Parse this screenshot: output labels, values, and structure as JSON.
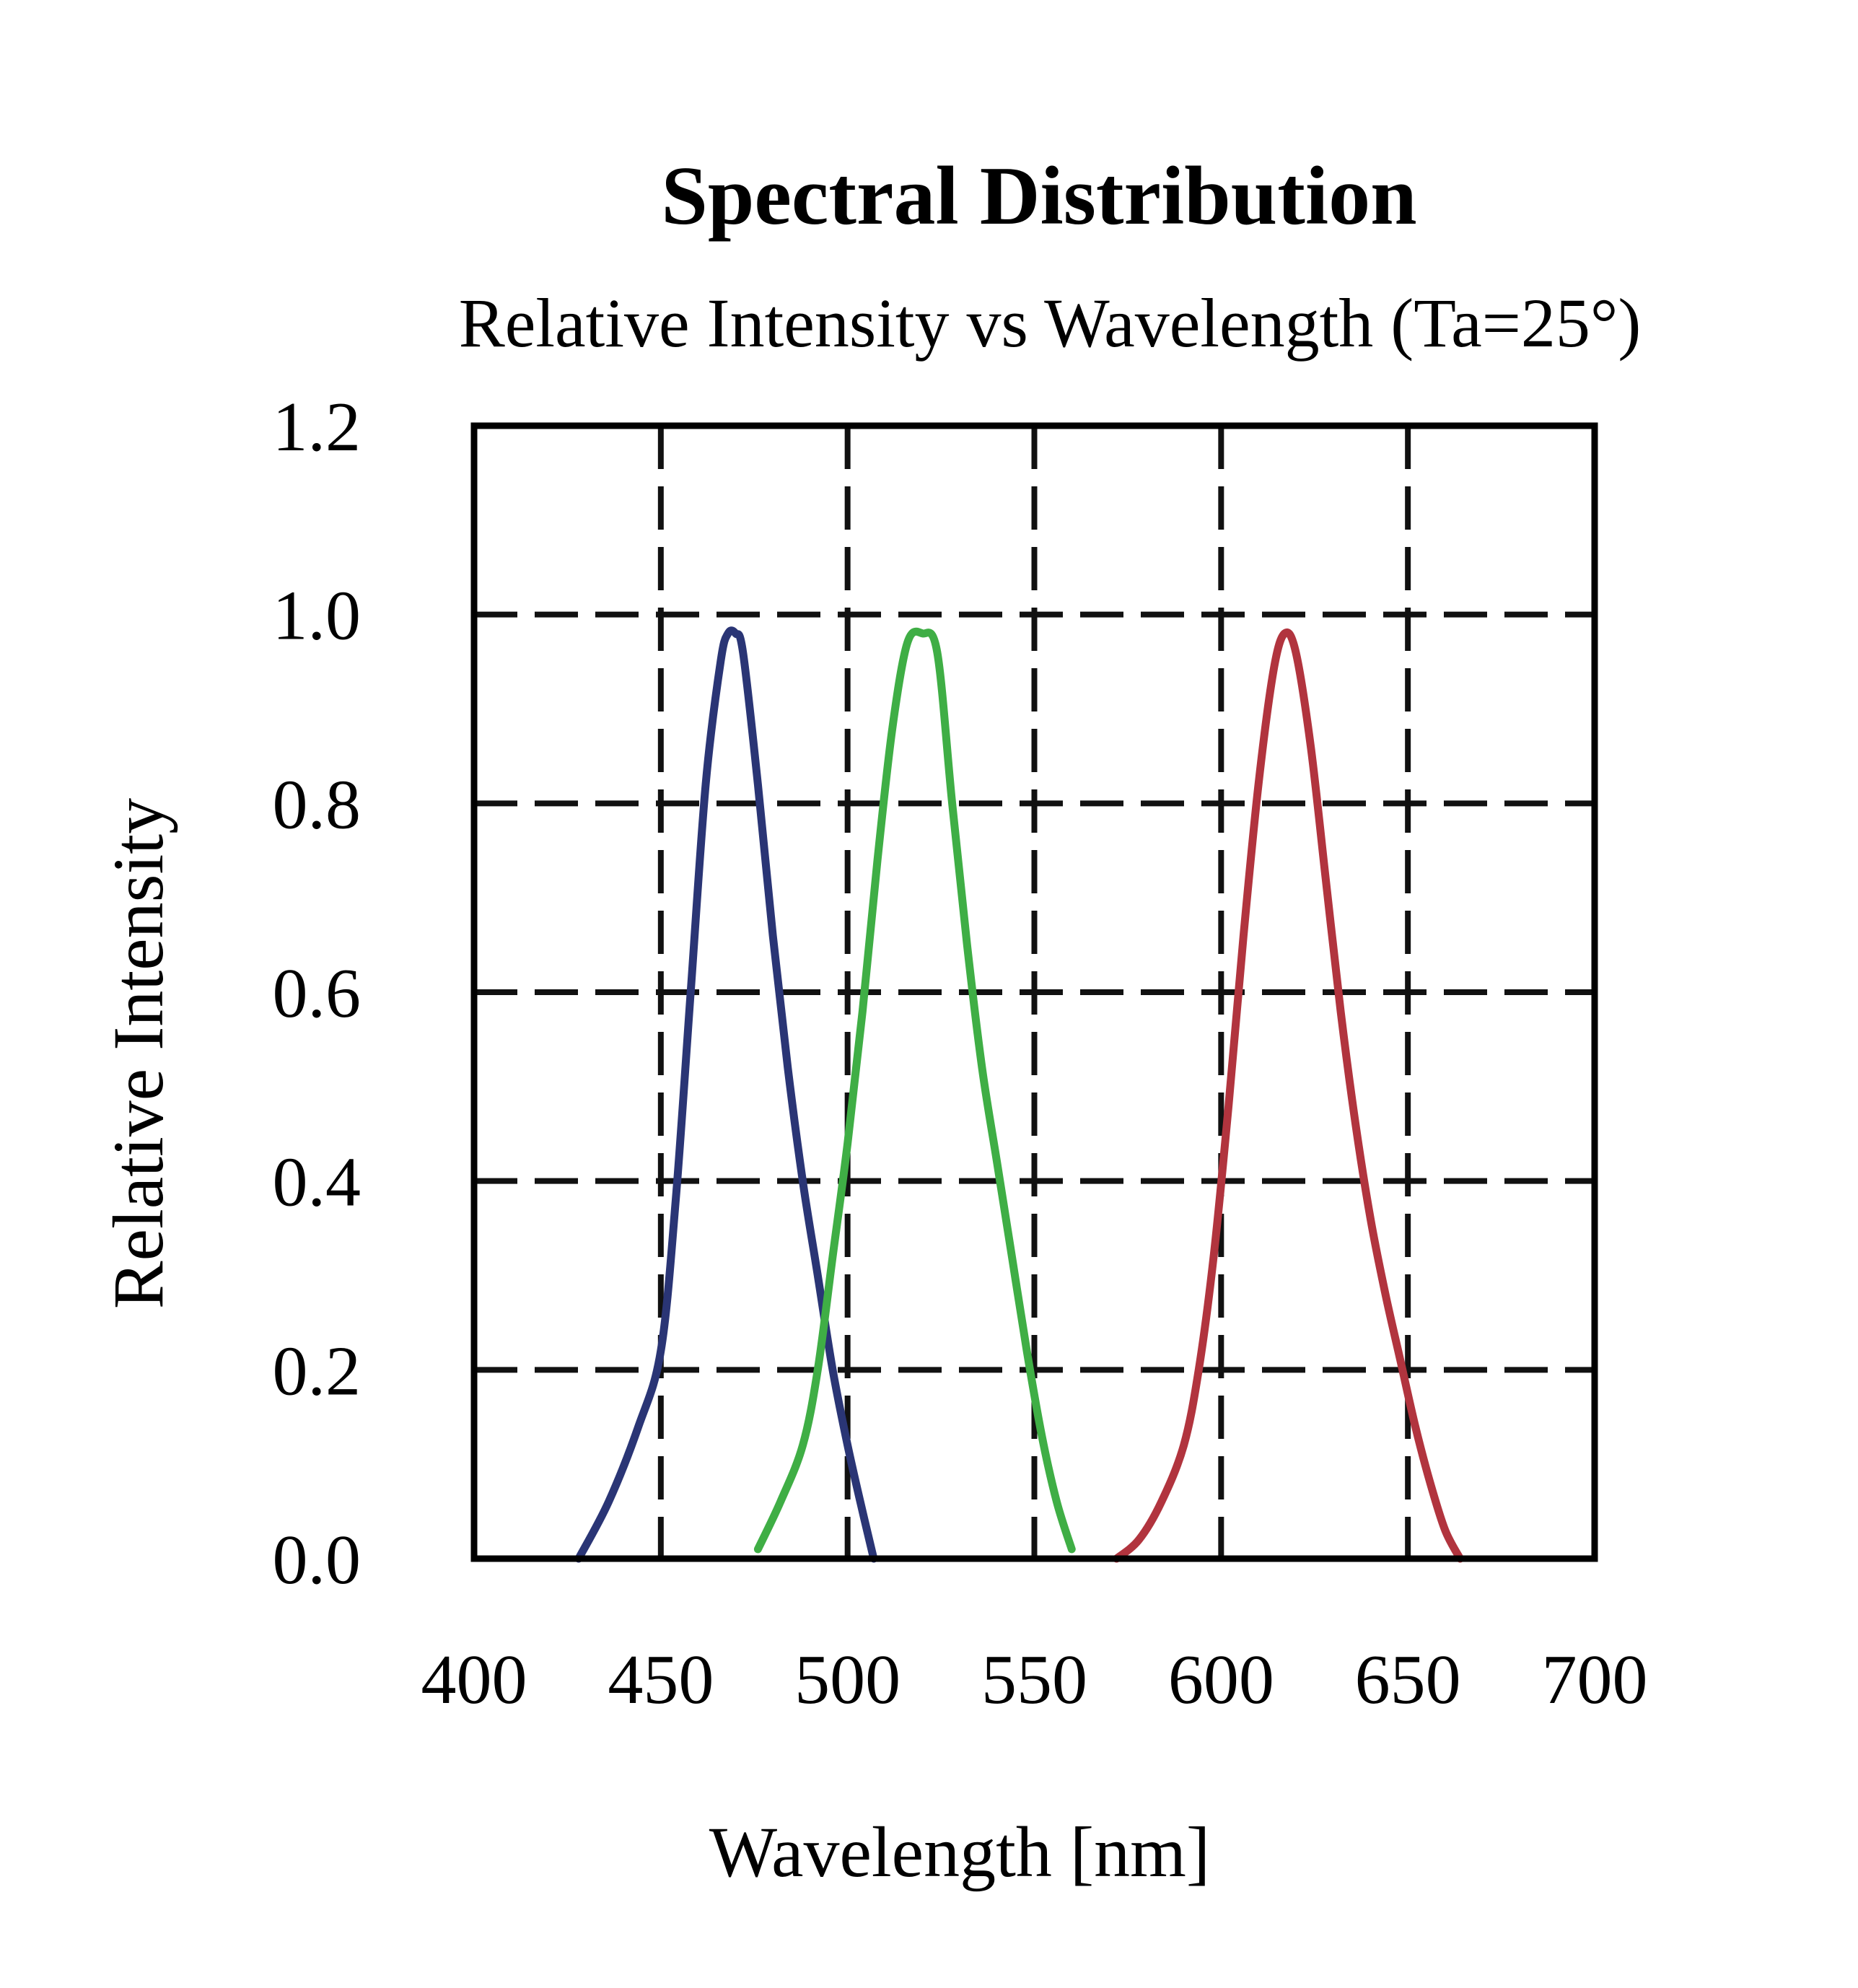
{
  "chart_data": {
    "type": "line",
    "title": "Spectral Distribution",
    "subtitle": "Relative Intensity vs Wavelength (Ta=25°)",
    "xlabel": "Wavelength [nm]",
    "ylabel": "Relative Intensity",
    "xlim": [
      400,
      700
    ],
    "ylim": [
      0,
      1.2
    ],
    "x_ticks": [
      400,
      450,
      500,
      550,
      600,
      650,
      700
    ],
    "x_tick_labels": [
      "400",
      "450",
      "500",
      "550",
      "600",
      "650",
      "700"
    ],
    "y_ticks": [
      0,
      0.2,
      0.4,
      0.6,
      0.8,
      1.0,
      1.2
    ],
    "y_tick_labels": [
      "0.0",
      "0.2",
      "0.4",
      "0.6",
      "0.8",
      "1.0",
      "1.2"
    ],
    "grid": true,
    "grid_style": "dashed",
    "legend": "none",
    "series": [
      {
        "color": "#2a3575",
        "x": [
          428,
          436,
          444,
          450,
          454,
          458,
          462,
          466,
          468,
          470,
          472,
          476,
          480,
          484,
          488,
          492,
          496,
          500,
          504,
          507
        ],
        "y": [
          0.0,
          0.06,
          0.14,
          0.22,
          0.38,
          0.6,
          0.82,
          0.95,
          0.98,
          0.98,
          0.96,
          0.82,
          0.66,
          0.52,
          0.4,
          0.3,
          0.2,
          0.12,
          0.05,
          0.0
        ]
      },
      {
        "color": "#3fae45",
        "x": [
          476,
          482,
          488,
          492,
          496,
          500,
          504,
          508,
          512,
          516,
          520,
          524,
          528,
          532,
          536,
          540,
          544,
          548,
          552,
          556,
          560
        ],
        "y": [
          0.01,
          0.06,
          0.12,
          0.2,
          0.32,
          0.44,
          0.58,
          0.74,
          0.88,
          0.97,
          0.98,
          0.96,
          0.8,
          0.65,
          0.52,
          0.42,
          0.32,
          0.22,
          0.13,
          0.06,
          0.01
        ]
      },
      {
        "color": "#b1343e",
        "x": [
          572,
          578,
          584,
          590,
          594,
          598,
          602,
          606,
          610,
          614,
          617,
          620,
          624,
          628,
          632,
          636,
          640,
          644,
          648,
          652,
          656,
          660,
          664
        ],
        "y": [
          0.0,
          0.02,
          0.06,
          0.12,
          0.2,
          0.32,
          0.48,
          0.66,
          0.82,
          0.94,
          0.98,
          0.96,
          0.86,
          0.72,
          0.58,
          0.46,
          0.36,
          0.28,
          0.21,
          0.14,
          0.08,
          0.03,
          0.0
        ]
      }
    ]
  }
}
